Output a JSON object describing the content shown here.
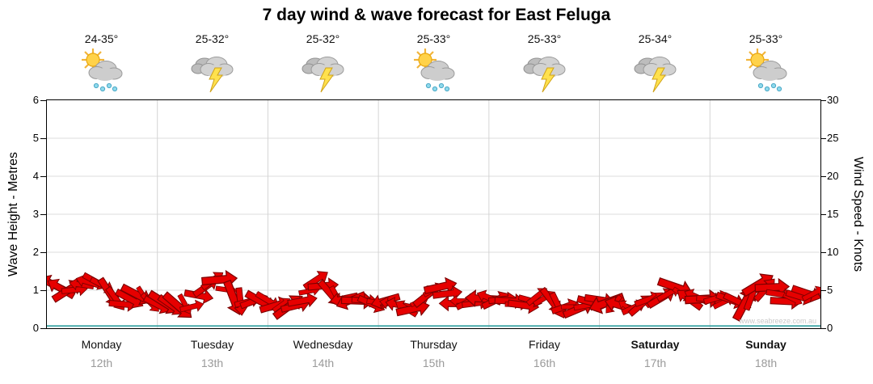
{
  "title": "7 day wind & wave forecast for East Feluga",
  "watermark": "www.seabreeze.com.au",
  "left_axis": {
    "label": "Wave Height - Metres",
    "ticks": [
      0,
      1,
      2,
      3,
      4,
      5,
      6
    ]
  },
  "right_axis": {
    "label": "Wind Speed - Knots",
    "ticks": [
      0,
      5,
      10,
      15,
      20,
      25,
      30
    ]
  },
  "days": [
    {
      "name": "Monday",
      "date": "12th",
      "temp": "24-35°",
      "icon": "sun-cloud-rain"
    },
    {
      "name": "Tuesday",
      "date": "13th",
      "temp": "25-32°",
      "icon": "cloud-lightning"
    },
    {
      "name": "Wednesday",
      "date": "14th",
      "temp": "25-32°",
      "icon": "cloud-lightning"
    },
    {
      "name": "Thursday",
      "date": "15th",
      "temp": "25-33°",
      "icon": "sun-cloud-rain"
    },
    {
      "name": "Friday",
      "date": "16th",
      "temp": "25-33°",
      "icon": "cloud-lightning"
    },
    {
      "name": "Saturday",
      "date": "17th",
      "temp": "25-34°",
      "icon": "cloud-lightning"
    },
    {
      "name": "Sunday",
      "date": "18th",
      "temp": "25-33°",
      "icon": "sun-cloud-rain"
    }
  ],
  "chart_data": {
    "type": "area",
    "title": "7 day wind & wave forecast for East Feluga",
    "categories": [
      "Monday 12th",
      "Tuesday 13th",
      "Wednesday 14th",
      "Thursday 15th",
      "Friday 16th",
      "Saturday 17th",
      "Sunday 18th"
    ],
    "points_per_day": 8,
    "ylabel_left": "Wave Height - Metres",
    "ylabel_right": "Wind Speed - Knots",
    "ylim_left": [
      0,
      6
    ],
    "ylim_right": [
      0,
      30
    ],
    "grid": true,
    "legend": false,
    "series": [
      {
        "name": "Wind Speed",
        "unit": "knots",
        "color": "#e60000",
        "style": "wind-arrows",
        "values": [
          5.5,
          5.2,
          5.8,
          6.0,
          4.5,
          3.2,
          4.5,
          3.6,
          3.4,
          3.0,
          2.8,
          5.2,
          6.5,
          4.2,
          3.6,
          3.4,
          3.2,
          3.0,
          3.6,
          6.2,
          4.4,
          3.8,
          3.4,
          3.2,
          3.4,
          3.0,
          2.8,
          4.2,
          5.6,
          3.0,
          3.4,
          3.8,
          3.8,
          3.4,
          3.0,
          4.0,
          3.4,
          2.8,
          2.6,
          3.4,
          3.4,
          3.0,
          2.6,
          3.6,
          4.2,
          5.6,
          4.0,
          3.8,
          4.0,
          3.6,
          3.2,
          5.8,
          5.2,
          3.6,
          4.2,
          4.6
        ]
      },
      {
        "name": "Wave Height",
        "unit": "metres",
        "color": "#2e9e9e",
        "style": "line",
        "constant_value": 0.05
      }
    ]
  }
}
